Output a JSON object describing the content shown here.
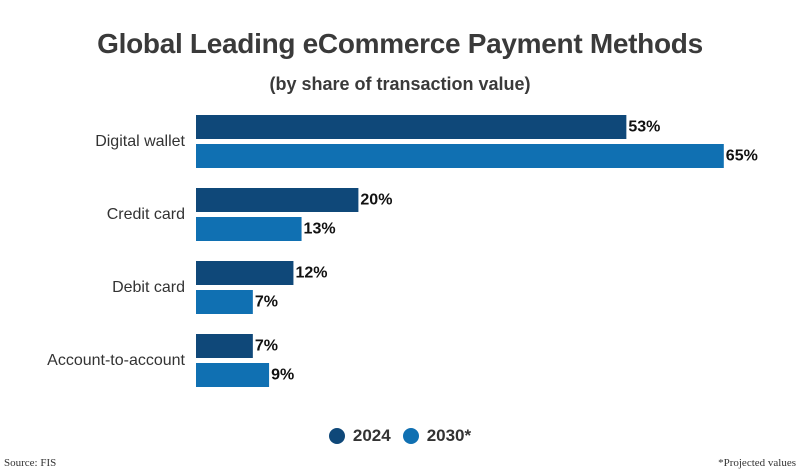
{
  "header": {
    "title": "Global Leading eCommerce Payment Methods",
    "subtitle": "(by share of transaction value)"
  },
  "footer": {
    "source": "Source: FIS",
    "note": "*Projected values"
  },
  "colors": {
    "series_2024": "#0f4879",
    "series_2030": "#1070b2"
  },
  "chart_data": {
    "type": "bar",
    "orientation": "horizontal",
    "categories": [
      "Digital wallet",
      "Credit card",
      "Debit card",
      "Account-to-account"
    ],
    "series": [
      {
        "name": "2024",
        "values": [
          53,
          20,
          12,
          7
        ],
        "labels": [
          "53%",
          "20%",
          "12%",
          "7%"
        ]
      },
      {
        "name": "2030*",
        "values": [
          65,
          13,
          7,
          9
        ],
        "labels": [
          "65%",
          "13%",
          "7%",
          "9%"
        ]
      }
    ],
    "title": "Global Leading eCommerce Payment Methods",
    "subtitle": "(by share of transaction value)",
    "xlabel": "",
    "ylabel": "",
    "grid": false,
    "legend": "bottom"
  }
}
